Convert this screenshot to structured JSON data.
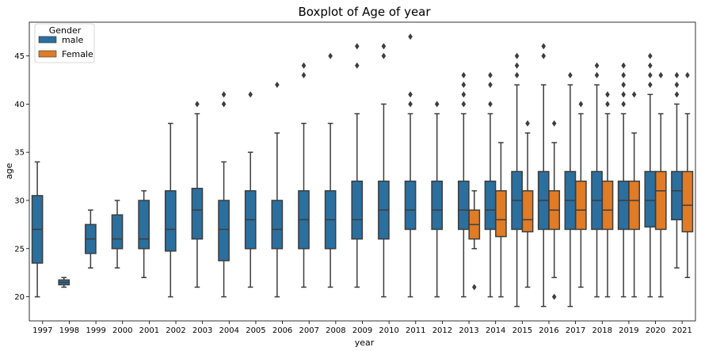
{
  "chart_data": {
    "type": "box",
    "title": "Boxplot of Age of year",
    "xlabel": "year",
    "ylabel": "age",
    "ylim": [
      17.5,
      48.5
    ],
    "yticks": [
      20,
      25,
      30,
      35,
      40,
      45
    ],
    "categories": [
      "1997",
      "1998",
      "1999",
      "2000",
      "2001",
      "2002",
      "2003",
      "2004",
      "2005",
      "2006",
      "2007",
      "2008",
      "2009",
      "2010",
      "2011",
      "2012",
      "2013",
      "2014",
      "2015",
      "2016",
      "2017",
      "2018",
      "2019",
      "2020",
      "2021"
    ],
    "legend": {
      "title": "Gender",
      "position": "top-left"
    },
    "series": [
      {
        "name": "male",
        "color": "#2b6f9e",
        "boxes": [
          {
            "x": "1997",
            "whislo": 20,
            "q1": 23.5,
            "med": 27,
            "q3": 30.5,
            "whishi": 34,
            "fliers": []
          },
          {
            "x": "1998",
            "whislo": 21,
            "q1": 21.25,
            "med": 21.5,
            "q3": 21.75,
            "whishi": 22,
            "fliers": []
          },
          {
            "x": "1999",
            "whislo": 23,
            "q1": 24.5,
            "med": 26,
            "q3": 27.5,
            "whishi": 29,
            "fliers": []
          },
          {
            "x": "2000",
            "whislo": 23,
            "q1": 25,
            "med": 26,
            "q3": 28.5,
            "whishi": 30,
            "fliers": []
          },
          {
            "x": "2001",
            "whislo": 22,
            "q1": 25,
            "med": 26,
            "q3": 30,
            "whishi": 31,
            "fliers": []
          },
          {
            "x": "2002",
            "whislo": 20,
            "q1": 24.75,
            "med": 27,
            "q3": 31,
            "whishi": 38,
            "fliers": []
          },
          {
            "x": "2003",
            "whislo": 21,
            "q1": 26,
            "med": 29,
            "q3": 31.25,
            "whishi": 39,
            "fliers": [
              40
            ]
          },
          {
            "x": "2004",
            "whislo": 20,
            "q1": 23.75,
            "med": 27,
            "q3": 30,
            "whishi": 34,
            "fliers": [
              40,
              41
            ]
          },
          {
            "x": "2005",
            "whislo": 21,
            "q1": 25,
            "med": 28,
            "q3": 31,
            "whishi": 35,
            "fliers": [
              41
            ]
          },
          {
            "x": "2006",
            "whislo": 20,
            "q1": 25,
            "med": 27,
            "q3": 30,
            "whishi": 37,
            "fliers": [
              42
            ]
          },
          {
            "x": "2007",
            "whislo": 21,
            "q1": 25,
            "med": 28,
            "q3": 31,
            "whishi": 38,
            "fliers": [
              43,
              44
            ]
          },
          {
            "x": "2008",
            "whislo": 21,
            "q1": 25,
            "med": 28,
            "q3": 31,
            "whishi": 38,
            "fliers": [
              45
            ]
          },
          {
            "x": "2009",
            "whislo": 21,
            "q1": 26,
            "med": 28,
            "q3": 32,
            "whishi": 39,
            "fliers": [
              44,
              46
            ]
          },
          {
            "x": "2010",
            "whislo": 20,
            "q1": 26,
            "med": 29,
            "q3": 32,
            "whishi": 40,
            "fliers": [
              45,
              46
            ]
          },
          {
            "x": "2011",
            "whislo": 20,
            "q1": 27,
            "med": 29,
            "q3": 32,
            "whishi": 39,
            "fliers": [
              40,
              41,
              47
            ]
          },
          {
            "x": "2012",
            "whislo": 20,
            "q1": 27,
            "med": 29,
            "q3": 32,
            "whishi": 39,
            "fliers": [
              40
            ]
          },
          {
            "x": "2013",
            "whislo": 20,
            "q1": 27,
            "med": 29,
            "q3": 32,
            "whishi": 39,
            "fliers": [
              40,
              41,
              42,
              43
            ]
          },
          {
            "x": "2014",
            "whislo": 20,
            "q1": 27,
            "med": 29,
            "q3": 32,
            "whishi": 39,
            "fliers": [
              40,
              42,
              43
            ]
          },
          {
            "x": "2015",
            "whislo": 19,
            "q1": 27,
            "med": 30,
            "q3": 33,
            "whishi": 42,
            "fliers": [
              43,
              44,
              45
            ]
          },
          {
            "x": "2016",
            "whislo": 19,
            "q1": 27,
            "med": 30,
            "q3": 33,
            "whishi": 42,
            "fliers": [
              45,
              46
            ]
          },
          {
            "x": "2017",
            "whislo": 19,
            "q1": 27,
            "med": 30,
            "q3": 33,
            "whishi": 42,
            "fliers": [
              43
            ]
          },
          {
            "x": "2018",
            "whislo": 20,
            "q1": 27,
            "med": 30,
            "q3": 33,
            "whishi": 42,
            "fliers": [
              43,
              44
            ]
          },
          {
            "x": "2019",
            "whislo": 20,
            "q1": 27,
            "med": 30,
            "q3": 32,
            "whishi": 39,
            "fliers": [
              40,
              41,
              42,
              43,
              44
            ]
          },
          {
            "x": "2020",
            "whislo": 20,
            "q1": 27.25,
            "med": 30,
            "q3": 33,
            "whishi": 41,
            "fliers": [
              42,
              43,
              44,
              45
            ]
          },
          {
            "x": "2021",
            "whislo": 23,
            "q1": 28,
            "med": 31,
            "q3": 33,
            "whishi": 40,
            "fliers": [
              41,
              42,
              43
            ]
          }
        ]
      },
      {
        "name": "Female",
        "color": "#e07b26",
        "boxes": [
          {
            "x": "2013",
            "whislo": 25,
            "q1": 26,
            "med": 27.5,
            "q3": 29,
            "whishi": 31,
            "fliers": [
              21
            ]
          },
          {
            "x": "2014",
            "whislo": 20,
            "q1": 26.25,
            "med": 28,
            "q3": 31,
            "whishi": 36,
            "fliers": []
          },
          {
            "x": "2015",
            "whislo": 21,
            "q1": 26.75,
            "med": 28,
            "q3": 31,
            "whishi": 37,
            "fliers": [
              38
            ]
          },
          {
            "x": "2016",
            "whislo": 22,
            "q1": 27,
            "med": 29,
            "q3": 31,
            "whishi": 36,
            "fliers": [
              20,
              38
            ]
          },
          {
            "x": "2017",
            "whislo": 21,
            "q1": 27,
            "med": 29,
            "q3": 32,
            "whishi": 39,
            "fliers": [
              40
            ]
          },
          {
            "x": "2018",
            "whislo": 20,
            "q1": 27,
            "med": 29,
            "q3": 32,
            "whishi": 39,
            "fliers": [
              40,
              41
            ]
          },
          {
            "x": "2019",
            "whislo": 20,
            "q1": 27,
            "med": 30,
            "q3": 32,
            "whishi": 37,
            "fliers": [
              41
            ]
          },
          {
            "x": "2020",
            "whislo": 20,
            "q1": 27,
            "med": 31,
            "q3": 33,
            "whishi": 39,
            "fliers": [
              43
            ]
          },
          {
            "x": "2021",
            "whislo": 22,
            "q1": 26.75,
            "med": 29.5,
            "q3": 33,
            "whishi": 39,
            "fliers": [
              43
            ]
          }
        ]
      }
    ]
  }
}
